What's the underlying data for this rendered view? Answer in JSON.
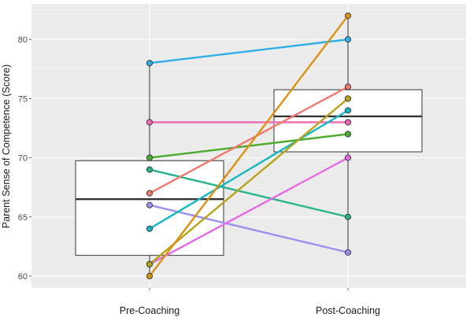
{
  "chart_data": {
    "type": "boxplot-paired-lines",
    "title": "",
    "xlabel": "",
    "ylabel": "Parent Sense of Competence (Score)",
    "categories": [
      "Pre-Coaching",
      "Post-Coaching"
    ],
    "ylim": [
      59,
      83
    ],
    "yticks": [
      60,
      65,
      70,
      75,
      80
    ],
    "grid": true,
    "legend": "none",
    "colors": {
      "panel_bg": "#ebebeb",
      "grid_major": "#ffffff",
      "box_fill": "#ffffff",
      "box_line": "#333333"
    },
    "boxes": [
      {
        "category": "Pre-Coaching",
        "q1": 61.75,
        "median": 66.5,
        "q3": 69.75,
        "min": 60,
        "max": 78
      },
      {
        "category": "Post-Coaching",
        "q1": 70.5,
        "median": 73.5,
        "q3": 75.75,
        "min": 62,
        "max": 82
      }
    ],
    "series": [
      {
        "values": [
          78,
          80
        ],
        "color": "#2eaee6"
      },
      {
        "values": [
          73,
          73
        ],
        "color": "#f067b4"
      },
      {
        "values": [
          70,
          72
        ],
        "color": "#4aac2c"
      },
      {
        "values": [
          69,
          65
        ],
        "color": "#26b38a"
      },
      {
        "values": [
          67,
          76
        ],
        "color": "#f0786e"
      },
      {
        "values": [
          66,
          62
        ],
        "color": "#9a8ef0"
      },
      {
        "values": [
          64,
          74
        ],
        "color": "#14b8c4"
      },
      {
        "values": [
          61,
          70
        ],
        "color": "#e46ae6"
      },
      {
        "values": [
          61,
          75
        ],
        "color": "#b8a21a"
      },
      {
        "values": [
          60,
          82
        ],
        "color": "#d99212"
      }
    ]
  }
}
